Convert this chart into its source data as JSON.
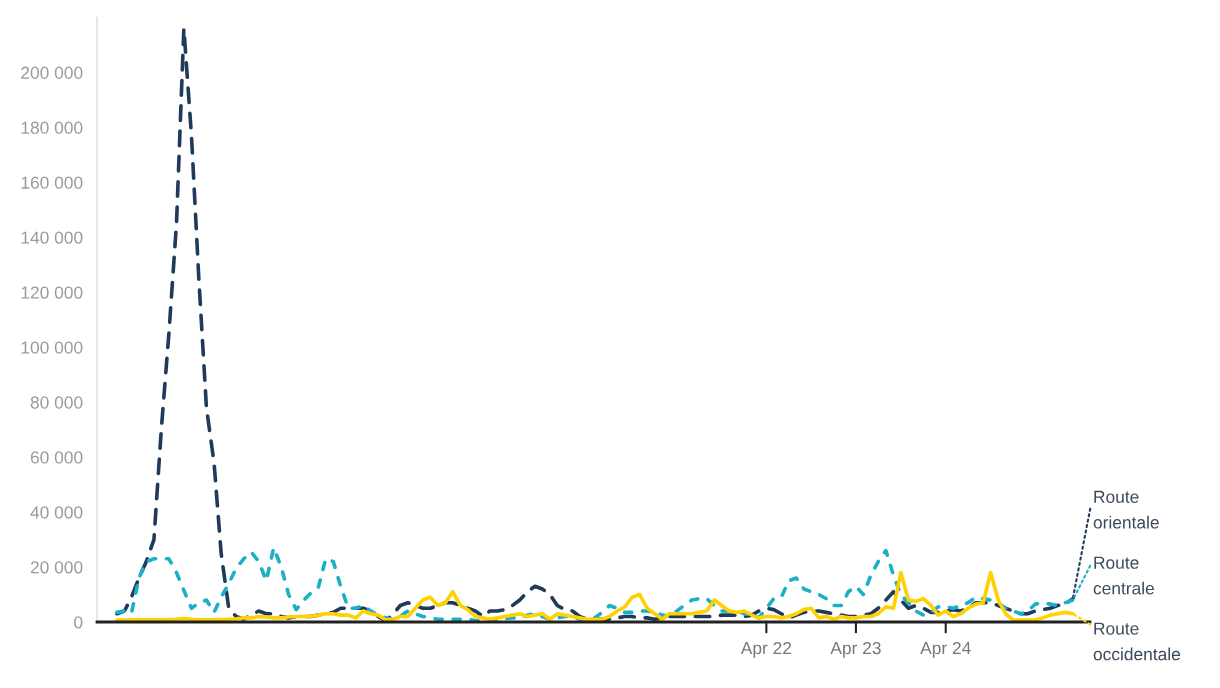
{
  "chart_data": {
    "type": "line",
    "x": [
      "2015-01",
      "2015-02",
      "2015-03",
      "2015-04",
      "2015-05",
      "2015-06",
      "2015-07",
      "2015-08",
      "2015-09",
      "2015-10",
      "2015-11",
      "2015-12",
      "2016-01",
      "2016-02",
      "2016-03",
      "2016-04",
      "2016-05",
      "2016-06",
      "2016-07",
      "2016-08",
      "2016-09",
      "2016-10",
      "2016-11",
      "2016-12",
      "2017-01",
      "2017-02",
      "2017-03",
      "2017-04",
      "2017-05",
      "2017-06",
      "2017-07",
      "2017-08",
      "2017-09",
      "2017-10",
      "2017-11",
      "2017-12",
      "2018-01",
      "2018-02",
      "2018-03",
      "2018-04",
      "2018-05",
      "2018-06",
      "2018-07",
      "2018-08",
      "2018-09",
      "2018-10",
      "2018-11",
      "2018-12",
      "2019-01",
      "2019-02",
      "2019-03",
      "2019-04",
      "2019-05",
      "2019-06",
      "2019-07",
      "2019-08",
      "2019-09",
      "2019-10",
      "2019-11",
      "2019-12",
      "2020-01",
      "2020-02",
      "2020-03",
      "2020-04",
      "2020-05",
      "2020-06",
      "2020-07",
      "2020-08",
      "2020-09",
      "2020-10",
      "2020-11",
      "2020-12",
      "2021-01",
      "2021-02",
      "2021-03",
      "2021-04",
      "2021-05",
      "2021-06",
      "2021-07",
      "2021-08",
      "2021-09",
      "2021-10",
      "2021-11",
      "2021-12",
      "2022-01",
      "2022-02",
      "2022-03",
      "2022-04",
      "2022-05",
      "2022-06",
      "2022-07",
      "2022-08",
      "2022-09",
      "2022-10",
      "2022-11",
      "2022-12",
      "2023-01",
      "2023-02",
      "2023-03",
      "2023-04",
      "2023-05",
      "2023-06",
      "2023-07",
      "2023-08",
      "2023-09",
      "2023-10",
      "2023-11",
      "2023-12",
      "2024-01",
      "2024-02",
      "2024-03",
      "2024-04",
      "2024-05",
      "2024-06",
      "2024-07",
      "2024-08",
      "2024-09",
      "2024-10",
      "2024-11",
      "2024-12",
      "2025-01",
      "2025-02",
      "2025-03",
      "2025-04",
      "2025-05",
      "2025-06",
      "2025-07",
      "2025-08",
      "2025-09"
    ],
    "series": [
      {
        "name": "Route orientale",
        "color": "#203a5c",
        "line_style": "dashed",
        "values": [
          3000,
          4000,
          9000,
          16000,
          22000,
          30000,
          70000,
          105000,
          145000,
          216000,
          177000,
          125000,
          78000,
          58000,
          25000,
          5000,
          2000,
          1000,
          2500,
          4000,
          3000,
          3000,
          2000,
          1500,
          2000,
          2000,
          2000,
          2500,
          3000,
          3500,
          5000,
          5000,
          5000,
          5000,
          4000,
          2000,
          300,
          3000,
          6000,
          7000,
          6000,
          5000,
          5000,
          6000,
          7000,
          7000,
          6000,
          5000,
          4000,
          2000,
          4000,
          4000,
          4500,
          6000,
          8000,
          11000,
          13000,
          12000,
          10000,
          6000,
          4500,
          4000,
          2000,
          1000,
          1000,
          1000,
          1000,
          1500,
          2000,
          2000,
          1500,
          1500,
          1000,
          1500,
          2000,
          2000,
          2000,
          2000,
          2000,
          2000,
          2000,
          2500,
          2500,
          2500,
          2000,
          2500,
          4000,
          5000,
          4500,
          3000,
          1500,
          2500,
          3500,
          4000,
          4000,
          3500,
          3000,
          2500,
          2000,
          2000,
          2500,
          3000,
          5000,
          8000,
          11000,
          8000,
          5000,
          6000,
          5000,
          3500,
          3500,
          4000,
          4500,
          4000,
          5000,
          7000,
          7000,
          7000,
          6000,
          5000,
          4000,
          3000,
          3000,
          4000,
          4500,
          5000,
          6000,
          6500,
          8500
        ]
      },
      {
        "name": "Route centrale",
        "color": "#1cb0c8",
        "line_style": "dotted",
        "values": [
          3500,
          4000,
          3000,
          16000,
          22000,
          23000,
          23000,
          23000,
          18000,
          11500,
          5000,
          7000,
          8000,
          3500,
          9000,
          14000,
          19500,
          23000,
          25500,
          22000,
          15000,
          27000,
          20000,
          10000,
          4500,
          8000,
          10500,
          12500,
          23000,
          22000,
          13000,
          5000,
          5000,
          6000,
          4000,
          2500,
          1500,
          1000,
          2000,
          4000,
          3000,
          2000,
          1500,
          1000,
          1000,
          1000,
          1000,
          1000,
          500,
          300,
          800,
          1000,
          1200,
          1500,
          1500,
          2500,
          3000,
          2000,
          1000,
          1500,
          2000,
          2000,
          1000,
          700,
          1500,
          3500,
          6000,
          5000,
          3500,
          3500,
          4000,
          4000,
          3500,
          2500,
          2000,
          4000,
          6000,
          8000,
          8500,
          8500,
          6000,
          4000,
          4000,
          4000,
          3000,
          2500,
          1500,
          5000,
          8500,
          9000,
          15000,
          16000,
          12000,
          11000,
          10000,
          8500,
          6000,
          6000,
          11000,
          13000,
          10000,
          17000,
          22000,
          26000,
          17000,
          10000,
          7000,
          4000,
          2500,
          3500,
          5500,
          5500,
          5000,
          6000,
          7000,
          9000,
          8500,
          8000,
          7000,
          5000,
          4000,
          3000,
          4000,
          6500,
          7000,
          6500,
          6000,
          7000,
          8000
        ]
      },
      {
        "name": "Route occidentale",
        "color": "#ffd100",
        "line_style": "solid",
        "values": [
          700,
          700,
          800,
          800,
          800,
          800,
          800,
          900,
          1000,
          1300,
          1000,
          800,
          800,
          800,
          900,
          1000,
          1200,
          1500,
          1500,
          2000,
          1800,
          1500,
          1500,
          1800,
          2000,
          2000,
          2000,
          2500,
          3000,
          3000,
          2500,
          2500,
          1500,
          4000,
          3000,
          2500,
          700,
          1000,
          2000,
          2000,
          5000,
          8000,
          9000,
          6000,
          7000,
          11000,
          6000,
          4500,
          2000,
          1500,
          1000,
          1500,
          2000,
          2500,
          3000,
          2000,
          2500,
          3000,
          1000,
          3000,
          2500,
          2000,
          1500,
          1000,
          1000,
          1000,
          2000,
          4000,
          5500,
          9000,
          10000,
          5000,
          3000,
          1000,
          3000,
          3000,
          3000,
          3000,
          3500,
          4000,
          8000,
          6000,
          4000,
          3500,
          4000,
          2500,
          1500,
          2000,
          2000,
          1500,
          2000,
          3000,
          4500,
          5000,
          1500,
          2000,
          1000,
          2000,
          1500,
          1500,
          2000,
          2000,
          3000,
          5500,
          5000,
          18000,
          8000,
          7500,
          8500,
          6000,
          2500,
          4000,
          2000,
          3000,
          5000,
          6500,
          7000,
          18000,
          8000,
          3000,
          700,
          700,
          700,
          700,
          1500,
          2500,
          3000,
          3500,
          3000
        ]
      }
    ],
    "xlim": [
      "2014-10-12",
      "2025-11-10"
    ],
    "xticks": [
      {
        "value": "2022-04",
        "label": "Apr 22"
      },
      {
        "value": "2023-04",
        "label": "Apr 23"
      },
      {
        "value": "2024-04",
        "label": "Apr 24"
      }
    ],
    "ylim": [
      0,
      220000
    ],
    "yticks": [
      {
        "value": 0,
        "label": "0"
      },
      {
        "value": 20000,
        "label": "20 000"
      },
      {
        "value": 40000,
        "label": "40 000"
      },
      {
        "value": 60000,
        "label": "60 000"
      },
      {
        "value": 80000,
        "label": "80 000"
      },
      {
        "value": 100000,
        "label": "100 000"
      },
      {
        "value": 120000,
        "label": "120 000"
      },
      {
        "value": 140000,
        "label": "140 000"
      },
      {
        "value": 160000,
        "label": "160 000"
      },
      {
        "value": 180000,
        "label": "180 000"
      },
      {
        "value": 200000,
        "label": "200 000"
      }
    ],
    "grid": false,
    "legend": "right"
  }
}
